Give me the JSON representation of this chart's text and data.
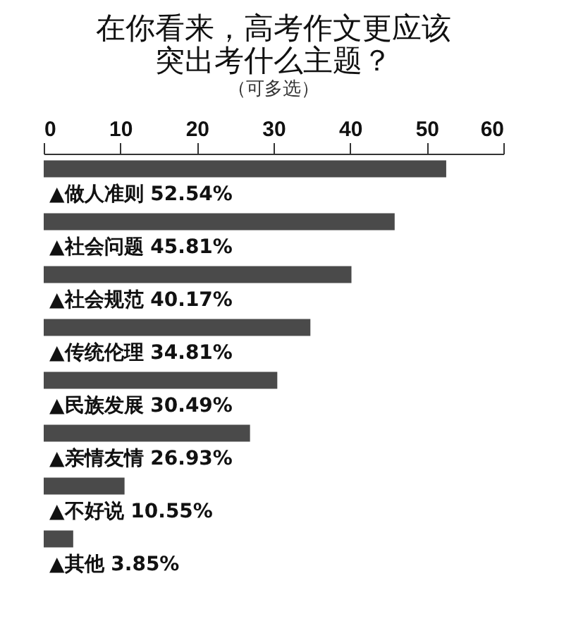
{
  "chart_data": {
    "type": "bar",
    "orientation": "horizontal",
    "title": "在你看来，高考作文更应该突出考什么主题？",
    "subtitle": "（可多选）",
    "categories": [
      "▲做人准则",
      "▲社会问题",
      "▲社会规范",
      "▲传统伦理",
      "▲民族发展",
      "▲亲情友情",
      "▲不好说",
      "▲其他"
    ],
    "values": [
      52.54,
      45.81,
      40.17,
      34.81,
      30.49,
      26.93,
      10.55,
      3.85
    ],
    "value_labels": [
      "52.54%",
      "45.81%",
      "40.17%",
      "34.81%",
      "30.49%",
      "26.93%",
      "10.55%",
      "3.85%"
    ],
    "color": "#4a4a4a",
    "xlim": [
      0,
      60
    ],
    "xticks": [
      0,
      10,
      20,
      30,
      40,
      50,
      60
    ],
    "grid": false
  }
}
